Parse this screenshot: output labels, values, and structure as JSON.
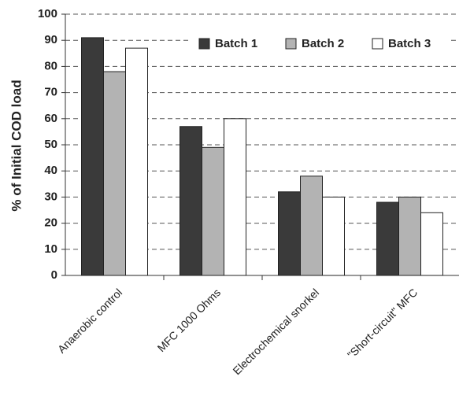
{
  "chart_data": {
    "type": "bar",
    "y_label": "% of Initial COD load",
    "categories": [
      "Anaerobic control",
      "MFC 1000 Ohms",
      "Electrochemical snorkel",
      "\"Short-circuit\" MFC"
    ],
    "series": [
      {
        "name": "Batch 1",
        "color": "#3a3a3a",
        "values": [
          91,
          57,
          32,
          28
        ]
      },
      {
        "name": "Batch 2",
        "color": "#b3b3b3",
        "values": [
          78,
          49,
          38,
          30
        ]
      },
      {
        "name": "Batch 3",
        "color": "#ffffff",
        "values": [
          87,
          60,
          30,
          24
        ]
      }
    ],
    "ylim": [
      0,
      100
    ],
    "yticks": [
      0,
      10,
      20,
      30,
      40,
      50,
      60,
      70,
      80,
      90,
      100
    ],
    "grid": true,
    "legend": "top-right"
  }
}
